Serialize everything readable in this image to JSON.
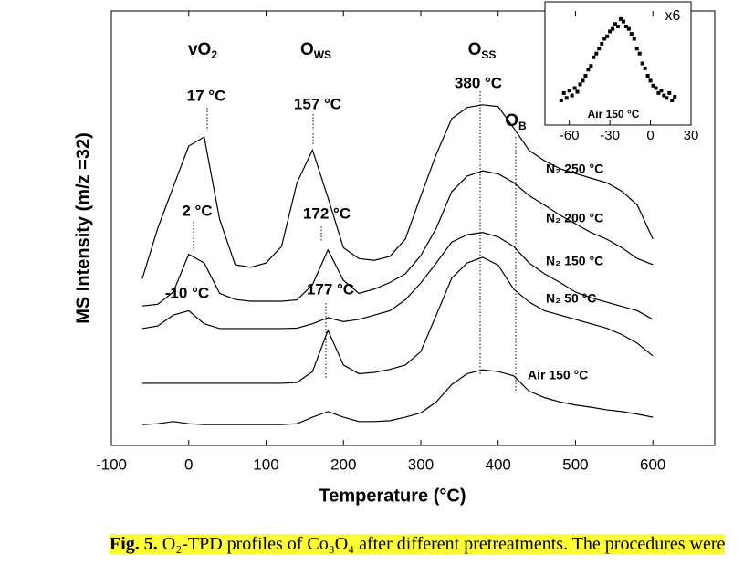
{
  "chart_data": [
    {
      "type": "line",
      "x_label": "Temperature (°C)",
      "y_label": "MS Intensity (m/z =32)",
      "x": [
        -60,
        -40,
        -20,
        0,
        20,
        40,
        60,
        80,
        100,
        120,
        140,
        160,
        180,
        200,
        220,
        240,
        260,
        280,
        300,
        320,
        340,
        360,
        380,
        400,
        420,
        440,
        460,
        480,
        500,
        520,
        540,
        560,
        580,
        600
      ],
      "xlim": [
        -100,
        680
      ],
      "xticks": [
        -100,
        0,
        100,
        200,
        300,
        400,
        500,
        600
      ],
      "ylim": [
        0,
        100
      ],
      "series": [
        {
          "name": "N₂ 250 °C",
          "color": "#000000",
          "values": [
            38.4,
            50,
            59.5,
            68.9,
            71,
            52,
            41.6,
            41,
            42,
            45.8,
            60.5,
            68,
            57,
            45.5,
            43,
            42.6,
            43.5,
            47.5,
            57.4,
            67,
            75.2,
            77.8,
            78.4,
            78,
            73.1,
            67.9,
            65.5,
            63.7,
            62.6,
            61.5,
            60.5,
            58.5,
            55.3,
            47.5
          ]
        },
        {
          "name": "N₂ 200 °C",
          "color": "#000000",
          "values": [
            32.1,
            32.5,
            35.3,
            44,
            42,
            35,
            33.6,
            33.2,
            33.2,
            33.2,
            33.5,
            37,
            45,
            38,
            35,
            36,
            37.5,
            39.5,
            43.7,
            50,
            58.4,
            62,
            63.2,
            62.5,
            60.5,
            57.5,
            55.3,
            53,
            51,
            49,
            47.5,
            45.5,
            43,
            41.6
          ]
        },
        {
          "name": "N₂ 150 °C",
          "color": "#000000",
          "values": [
            26.9,
            27.5,
            30,
            31,
            28,
            26.9,
            26.9,
            26.9,
            26.9,
            26.9,
            27,
            28,
            29.4,
            28.5,
            29,
            30,
            31,
            33.5,
            37.4,
            42,
            46.8,
            48.5,
            49,
            48,
            45.8,
            42,
            39.5,
            37.5,
            35.3,
            34,
            33,
            32,
            31,
            29
          ]
        },
        {
          "name": "N₂ 50 °C",
          "color": "#000000",
          "values": [
            14.3,
            14.3,
            14.3,
            14.3,
            14.3,
            14.3,
            14.3,
            14.3,
            14.3,
            14.3,
            14.5,
            17,
            26.5,
            18.5,
            16.5,
            16.8,
            17.5,
            18.5,
            21.6,
            30,
            38.5,
            42,
            43.3,
            41.5,
            36,
            33,
            31,
            30,
            29,
            28,
            27,
            25.5,
            23.5,
            20.6
          ]
        },
        {
          "name": "Air 150 °C",
          "color": "#000000",
          "values": [
            4.8,
            5,
            5.5,
            5,
            4.8,
            4.8,
            4.8,
            4.8,
            4.8,
            4.8,
            5,
            6.5,
            7.8,
            6.5,
            5.5,
            5.5,
            5.7,
            6.5,
            7.5,
            10,
            14,
            16.5,
            17.4,
            17,
            16,
            12.5,
            11,
            10,
            9.3,
            8.8,
            8.2,
            7.8,
            7.2,
            6.5
          ]
        }
      ],
      "species": [
        {
          "text": "vO",
          "sub": "2"
        },
        {
          "text": "O",
          "sub": "WS"
        },
        {
          "text": "O",
          "sub": "SS"
        },
        {
          "text": "O",
          "sub": "B"
        }
      ],
      "peak_labels": [
        "17 °C",
        "157 °C",
        "380 °C",
        "2 °C",
        "172 °C",
        "-10 °C",
        "177 °C"
      ]
    },
    {
      "type": "scatter",
      "label": "Air 150 °C",
      "factor": "x6",
      "color": "#000000",
      "x": [
        -66,
        -64,
        -62,
        -60,
        -58,
        -56,
        -54,
        -52,
        -50,
        -48,
        -46,
        -44,
        -42,
        -40,
        -38,
        -36,
        -34,
        -32,
        -30,
        -28,
        -26,
        -24,
        -22,
        -20,
        -18,
        -16,
        -14,
        -12,
        -10,
        -8,
        -6,
        -4,
        -2,
        0,
        2,
        4,
        6,
        8,
        10,
        12,
        14,
        16,
        18
      ],
      "values": [
        20,
        26,
        22,
        28,
        24,
        30,
        27,
        33,
        36,
        40,
        45,
        48,
        55,
        58,
        62,
        66,
        70,
        72,
        76,
        78,
        82,
        80,
        86,
        84,
        80,
        78,
        74,
        70,
        62,
        58,
        50,
        46,
        40,
        36,
        32,
        30,
        26,
        28,
        24,
        22,
        26,
        20,
        23
      ],
      "xlim": [
        -78,
        30
      ],
      "xticks": [
        -60,
        -30,
        0,
        30
      ],
      "ylim": [
        0,
        100
      ]
    }
  ],
  "caption": {
    "label": "Fig. 5.",
    "text": "O₂-TPD profiles of Co₃O₄ after different pretreatments. The procedures were"
  }
}
